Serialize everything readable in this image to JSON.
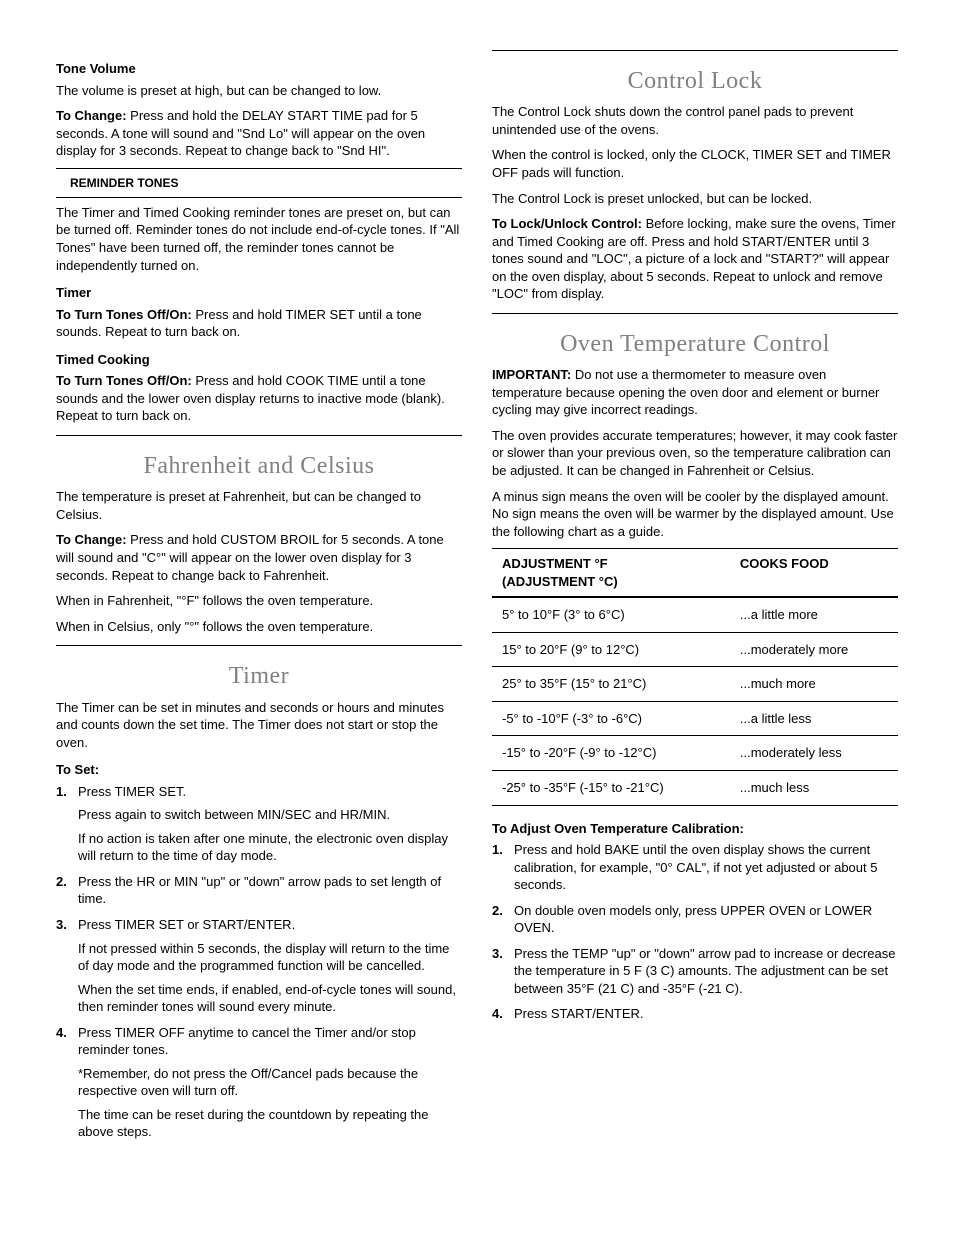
{
  "left": {
    "tone_volume": {
      "heading": "Tone Volume",
      "p1": "The volume is preset at high, but can be changed to low.",
      "change_lead": "To Change:",
      "change_body": " Press and hold the DELAY START TIME pad for 5 seconds. A tone will sound and \"Snd Lo\" will appear on the oven display for 3 seconds. Repeat to change back to \"Snd HI\"."
    },
    "reminder_tones": {
      "heading": "REMINDER TONES",
      "p1": "The Timer and Timed Cooking reminder tones are preset on, but can be turned off. Reminder tones do not include end-of-cycle tones. If \"All Tones\" have been turned off, the reminder tones cannot be independently turned on."
    },
    "timer_sub": {
      "heading": "Timer",
      "lead": "To Turn Tones Off/On:",
      "body": " Press and hold TIMER SET until a tone sounds. Repeat to turn back on."
    },
    "timed_cooking": {
      "heading": "Timed Cooking",
      "lead": "To Turn Tones Off/On:",
      "body": " Press and hold COOK TIME until a tone sounds and the lower oven display returns to inactive mode (blank). Repeat to turn back on."
    },
    "fc": {
      "title": "Fahrenheit and Celsius",
      "p1": "The temperature is preset at Fahrenheit, but can be changed to Celsius.",
      "change_lead": "To Change:",
      "change_body": " Press and hold CUSTOM BROIL for 5 seconds. A tone will sound and \"C°\" will appear on the lower oven display for 3 seconds. Repeat to change back to Fahrenheit.",
      "p3": "When in Fahrenheit, \"°F\" follows the oven temperature.",
      "p4": "When in Celsius, only \"°\" follows the oven temperature."
    },
    "timer_section": {
      "title": "Timer",
      "intro": "The Timer can be set in minutes and seconds or hours and minutes and counts down the set time. The Timer does not start or stop the oven.",
      "to_set": "To Set:",
      "steps": [
        {
          "main": "Press TIMER SET.",
          "sub": [
            "Press again to switch between MIN/SEC and HR/MIN.",
            "If no action is taken after one minute, the electronic oven display will return to the time of day mode."
          ]
        },
        {
          "main": "Press the HR or MIN \"up\" or \"down\" arrow pads to set length of time.",
          "sub": []
        },
        {
          "main": "Press TIMER SET or START/ENTER.",
          "sub": [
            "If not pressed within 5 seconds, the display will return to the time of day mode and the programmed function will be cancelled.",
            "When the set time ends, if enabled, end-of-cycle tones will sound, then reminder tones will sound every minute."
          ]
        },
        {
          "main": "Press TIMER OFF anytime to cancel the Timer and/or stop reminder tones.",
          "sub": [
            "*Remember, do not press the Off/Cancel pads because the respective oven will turn off.",
            "The time can be reset during the countdown by repeating the above steps."
          ]
        }
      ]
    }
  },
  "right": {
    "control_lock": {
      "title": "Control Lock",
      "p1": "The Control Lock shuts down the control panel pads to prevent unintended use of the ovens.",
      "p2": "When the control is locked, only the CLOCK, TIMER SET and TIMER OFF pads will function.",
      "p3": "The Control Lock is preset unlocked, but can be locked.",
      "lock_lead": "To Lock/Unlock Control:",
      "lock_body": " Before locking, make sure the ovens, Timer and Timed Cooking are off. Press and hold START/ENTER until 3 tones sound and \"LOC\", a picture of a lock and \"START?\" will appear on the oven display, about 5 seconds. Repeat to unlock and remove \"LOC\" from display."
    },
    "otc": {
      "title": "Oven Temperature Control",
      "imp_lead": "IMPORTANT:",
      "imp_body": " Do not use a thermometer to measure oven temperature because opening the oven door and element or burner cycling may give incorrect readings.",
      "p2": "The oven provides accurate temperatures; however, it may cook faster or slower than your previous oven, so the temperature calibration can be adjusted. It can be changed in Fahrenheit or Celsius.",
      "p3": "A minus sign means the oven will be cooler by the displayed amount. No sign means the oven will be warmer by the displayed amount. Use the following chart as a guide.",
      "table": {
        "h1a": "ADJUSTMENT °F",
        "h1b": "(ADJUSTMENT °C)",
        "h2": "COOKS FOOD",
        "rows": [
          {
            "a": "5° to 10°F (3° to 6°C)",
            "b": "...a little more"
          },
          {
            "a": "15° to 20°F (9° to 12°C)",
            "b": "...moderately more"
          },
          {
            "a": "25° to 35°F (15° to 21°C)",
            "b": "...much more"
          },
          {
            "a": "-5° to -10°F (-3° to -6°C)",
            "b": "...a little less"
          },
          {
            "a": "-15° to -20°F (-9° to -12°C)",
            "b": "...moderately less"
          },
          {
            "a": "-25° to -35°F (-15° to -21°C)",
            "b": "...much less"
          }
        ]
      },
      "adjust_heading": "To Adjust Oven Temperature Calibration:",
      "steps": [
        {
          "main": "Press and hold BAKE until the oven display shows the current calibration, for example, \"0° CAL\", if not yet adjusted or about 5 seconds."
        },
        {
          "main": "On double oven models only, press UPPER OVEN or LOWER OVEN."
        },
        {
          "main": "Press the TEMP \"up\" or \"down\" arrow pad to increase or decrease the temperature in 5  F (3  C) amounts. The adjustment can be set between 35°F (21  C) and -35°F (-21  C)."
        },
        {
          "main": "Press START/ENTER."
        }
      ]
    }
  }
}
